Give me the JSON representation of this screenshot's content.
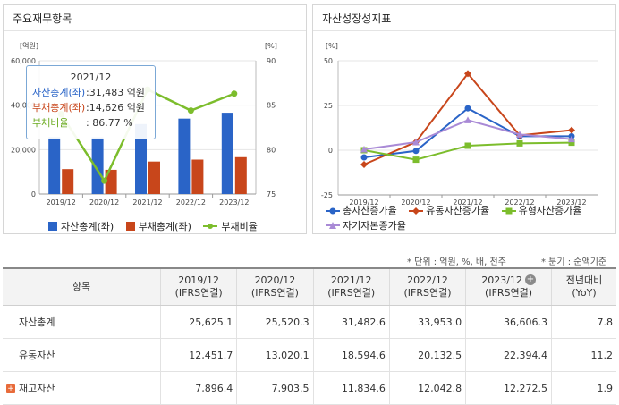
{
  "left_panel": {
    "title": "주요재무항목",
    "tooltip": {
      "date": "2021/12",
      "rows": [
        {
          "label": "자산총계(좌)",
          "value": ":31,483 억원",
          "color": "#2a64c7"
        },
        {
          "label": "부채총계(좌)",
          "value": ":14,626 억원",
          "color": "#c8461b"
        },
        {
          "label": "부채비율",
          "value": ":   86.77 %",
          "color": "#6aaa1f"
        }
      ]
    },
    "legend": [
      {
        "label": "자산총계(좌)",
        "color": "#2a64c7"
      },
      {
        "label": "부채총계(좌)",
        "color": "#c8461b"
      },
      {
        "label": "부채비율",
        "color": "#7cbd2c"
      }
    ]
  },
  "right_panel": {
    "title": "자산성장성지표",
    "legend": [
      {
        "label": "총자산증가율",
        "color": "#2a64c7"
      },
      {
        "label": "유동자산증가율",
        "color": "#c8461b"
      },
      {
        "label": "유형자산증가율",
        "color": "#7cbd2c"
      },
      {
        "label": "자기자본증가율",
        "color": "#a98ad6"
      }
    ]
  },
  "notes": {
    "unit": "* 단위 : 억원, %, 배, 천주",
    "period": "* 분기 : 순액기준"
  },
  "table": {
    "headers": [
      {
        "line1": "항목",
        "line2": ""
      },
      {
        "line1": "2019/12",
        "line2": "(IFRS연결)"
      },
      {
        "line1": "2020/12",
        "line2": "(IFRS연결)"
      },
      {
        "line1": "2021/12",
        "line2": "(IFRS연결)"
      },
      {
        "line1": "2022/12",
        "line2": "(IFRS연결)"
      },
      {
        "line1": "2023/12",
        "line2": "(IFRS연결)"
      },
      {
        "line1": "전년대비",
        "line2": "(YoY)"
      }
    ],
    "add_icon": "+",
    "rows": [
      {
        "name": "자산총계",
        "expandable": false,
        "cells": [
          "25,625.1",
          "25,520.3",
          "31,482.6",
          "33,953.0",
          "36,606.3",
          "7.8"
        ]
      },
      {
        "name": "유동자산",
        "expandable": false,
        "cells": [
          "12,451.7",
          "13,020.1",
          "18,594.6",
          "20,132.5",
          "22,394.4",
          "11.2"
        ]
      },
      {
        "name": "재고자산",
        "expandable": true,
        "expand_icon": "+",
        "cells": [
          "7,896.4",
          "7,903.5",
          "11,834.6",
          "12,042.8",
          "12,272.5",
          "1.9"
        ]
      }
    ]
  },
  "chart_data": [
    {
      "type": "bar",
      "title": "주요재무항목",
      "categories": [
        "2019/12",
        "2020/12",
        "2021/12",
        "2022/12",
        "2023/12"
      ],
      "y_left_unit": "[억원]",
      "y_right_unit": "[%]",
      "ylim_left": [
        0,
        60000
      ],
      "yticks_left": [
        "0",
        "20,000",
        "40,000",
        "60,000"
      ],
      "ylim_right": [
        75,
        90
      ],
      "yticks_right": [
        "75",
        "80",
        "85",
        "90"
      ],
      "series": [
        {
          "name": "자산총계(좌)",
          "type": "bar",
          "axis": "left",
          "color": "#2a64c7",
          "values": [
            25625,
            25520,
            31483,
            33953,
            36606
          ]
        },
        {
          "name": "부채총계(좌)",
          "type": "bar",
          "axis": "left",
          "color": "#c8461b",
          "values": [
            11200,
            10900,
            14626,
            15500,
            16600
          ]
        },
        {
          "name": "부채비율",
          "type": "line",
          "axis": "right",
          "color": "#7cbd2c",
          "values": [
            84.0,
            76.5,
            86.77,
            84.4,
            86.3
          ]
        }
      ]
    },
    {
      "type": "line",
      "title": "자산성장성지표",
      "categories": [
        "2019/12",
        "2020/12",
        "2021/12",
        "2022/12",
        "2023/12"
      ],
      "y_unit": "[%]",
      "ylim": [
        -25,
        50
      ],
      "yticks": [
        "-25",
        "0",
        "25",
        "50"
      ],
      "series": [
        {
          "name": "총자산증가율",
          "color": "#2a64c7",
          "marker": "circle",
          "values": [
            -4,
            -0.4,
            23.4,
            7.8,
            7.8
          ]
        },
        {
          "name": "유동자산증가율",
          "color": "#c8461b",
          "marker": "diamond",
          "values": [
            -8,
            4.6,
            42.8,
            8.3,
            11.2
          ]
        },
        {
          "name": "유형자산증가율",
          "color": "#7cbd2c",
          "marker": "square",
          "values": [
            0,
            -5.3,
            2.5,
            3.8,
            4.2
          ]
        },
        {
          "name": "자기자본증가율",
          "color": "#a98ad6",
          "marker": "triangle",
          "values": [
            0.5,
            4.5,
            16.8,
            8.8,
            6.2
          ]
        }
      ]
    }
  ]
}
